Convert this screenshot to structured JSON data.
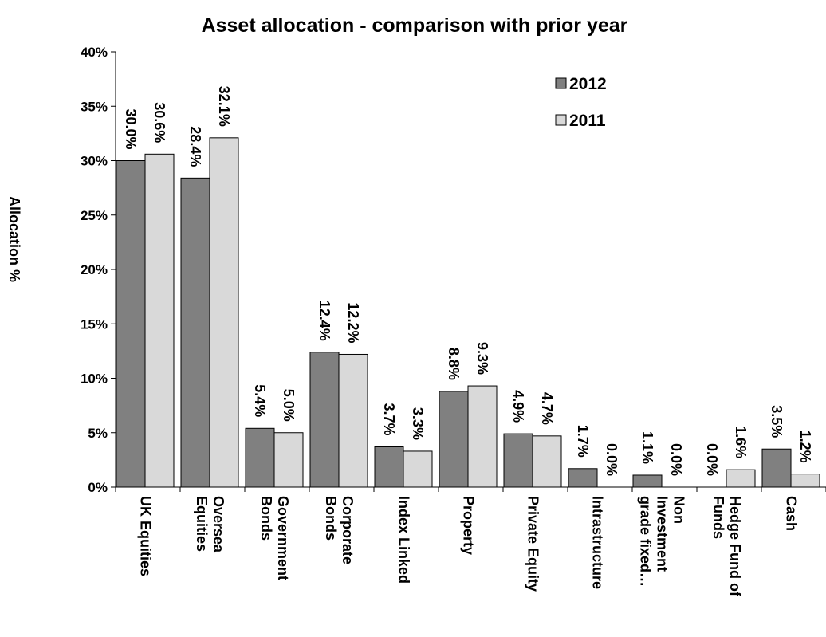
{
  "chart_data": {
    "type": "bar",
    "title": "Asset allocation - comparison with prior year",
    "y_label": "Allocation %",
    "categories": [
      "UK Equities",
      "Oversea\nEquities",
      "Government\nBonds",
      "Corporate\nBonds",
      "Index Linked",
      "Property",
      "Private Equity",
      "Intrastructure",
      "Non\nInvestment\ngrade fixed…",
      "Hedge Fund of\nFunds",
      "Cash"
    ],
    "series": [
      {
        "name": "2012",
        "color": "#808080",
        "values": [
          30.0,
          28.4,
          5.4,
          12.4,
          3.7,
          8.8,
          4.9,
          1.7,
          1.1,
          0.0,
          3.5
        ],
        "value_labels": [
          "30.0%",
          "28.4%",
          "5.4%",
          "12.4%",
          "3.7%",
          "8.8%",
          "4.9%",
          "1.7%",
          "1.1%",
          "0.0%",
          "3.5%"
        ]
      },
      {
        "name": "2011",
        "color": "#d9d9d9",
        "values": [
          30.6,
          32.1,
          5.0,
          12.2,
          3.3,
          9.3,
          4.7,
          0.0,
          0.0,
          1.6,
          1.2
        ],
        "value_labels": [
          "30.6%",
          "32.1%",
          "5.0%",
          "12.2%",
          "3.3%",
          "9.3%",
          "4.7%",
          "0.0%",
          "0.0%",
          "1.6%",
          "1.2%"
        ]
      }
    ],
    "ylim": [
      0,
      40
    ],
    "yticks": [
      {
        "value": 0,
        "label": "0%"
      },
      {
        "value": 5,
        "label": "5%"
      },
      {
        "value": 10,
        "label": "10%"
      },
      {
        "value": 15,
        "label": "15%"
      },
      {
        "value": 20,
        "label": "20%"
      },
      {
        "value": 25,
        "label": "25%"
      },
      {
        "value": 30,
        "label": "30%"
      },
      {
        "value": 35,
        "label": "35%"
      },
      {
        "value": 40,
        "label": "40%"
      }
    ],
    "legend": "upper right"
  }
}
